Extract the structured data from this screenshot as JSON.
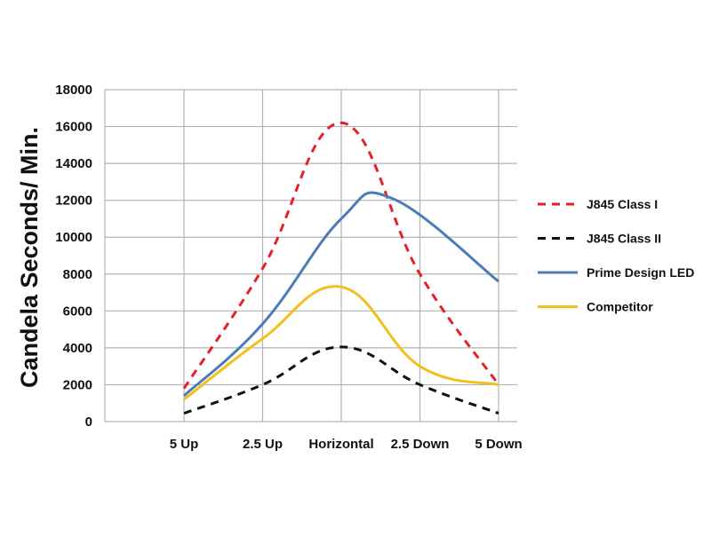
{
  "chart_data": {
    "type": "line",
    "title": "",
    "xlabel": "",
    "ylabel": "Candela Seconds/ Min.",
    "categories": [
      "5 Up",
      "2.5 Up",
      "Horizontal",
      "2.5 Down",
      "5 Down"
    ],
    "ylim": [
      0,
      18000
    ],
    "yticks": [
      0,
      2000,
      4000,
      6000,
      8000,
      10000,
      12000,
      14000,
      16000,
      18000
    ],
    "grid": true,
    "legend_position": "right",
    "series": [
      {
        "name": "J845 Class I",
        "color": "#e32228",
        "style": "dashed",
        "points": [
          {
            "x": 0,
            "y": 1800
          },
          {
            "x": 1,
            "y": 8300
          },
          {
            "x": 2,
            "y": 16200
          },
          {
            "x": 3,
            "y": 8000
          },
          {
            "x": 4,
            "y": 2000
          }
        ]
      },
      {
        "name": "J845 Class II",
        "color": "#111111",
        "style": "dashed",
        "points": [
          {
            "x": 0,
            "y": 450
          },
          {
            "x": 1,
            "y": 2000
          },
          {
            "x": 2,
            "y": 4050
          },
          {
            "x": 3,
            "y": 2000
          },
          {
            "x": 4,
            "y": 450
          }
        ]
      },
      {
        "name": "Prime Design LED",
        "color": "#4a7db8",
        "style": "solid",
        "points": [
          {
            "x": 0,
            "y": 1400
          },
          {
            "x": 1,
            "y": 5300
          },
          {
            "x": 2,
            "y": 11000
          },
          {
            "x": 2.65,
            "y": 12100
          },
          {
            "x": 4,
            "y": 7600
          }
        ]
      },
      {
        "name": "Competitor",
        "color": "#f2bf1e",
        "style": "solid",
        "points": [
          {
            "x": 0,
            "y": 1200
          },
          {
            "x": 1,
            "y": 4500
          },
          {
            "x": 2,
            "y": 7300
          },
          {
            "x": 3,
            "y": 3000
          },
          {
            "x": 4,
            "y": 2000
          }
        ]
      }
    ]
  }
}
